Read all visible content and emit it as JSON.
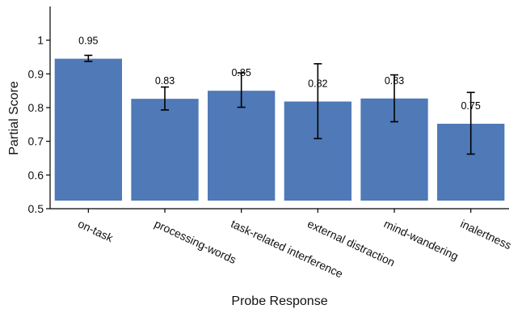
{
  "chart_data": {
    "type": "bar",
    "title": "",
    "xlabel": "Probe Response",
    "ylabel": "Partial Score",
    "categories": [
      "on-task",
      "processing-words",
      "task-related interference",
      "external distraction",
      "mind-wandering",
      "inalertness"
    ],
    "values": [
      0.945,
      0.826,
      0.85,
      0.818,
      0.827,
      0.752
    ],
    "value_labels": [
      "0.95",
      "0.83",
      "0.85",
      "0.82",
      "0.83",
      "0.75"
    ],
    "error_low": [
      0.937,
      0.793,
      0.801,
      0.708,
      0.758,
      0.662
    ],
    "error_high": [
      0.955,
      0.861,
      0.903,
      0.93,
      0.897,
      0.845
    ],
    "ylim": [
      0.5,
      1.1
    ],
    "yticks": [
      0.5,
      0.6,
      0.7,
      0.8,
      0.9,
      1.0
    ],
    "ytick_labels": [
      "0.5",
      "0.6",
      "0.7",
      "0.8",
      "0.9",
      "1"
    ],
    "bar_color": "#4f79b7",
    "grid": false,
    "legend": "none"
  }
}
